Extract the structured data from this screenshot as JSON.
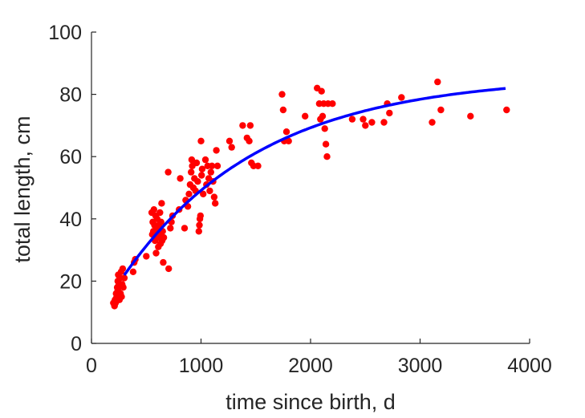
{
  "chart_data": {
    "type": "scatter",
    "title": "",
    "xlabel": "time since birth, d",
    "ylabel": "total length, cm",
    "xlim": [
      0,
      4000
    ],
    "ylim": [
      0,
      100
    ],
    "xticks": [
      0,
      1000,
      2000,
      3000,
      4000
    ],
    "yticks": [
      0,
      20,
      40,
      60,
      80,
      100
    ],
    "xtick_labels": [
      "0",
      "1000",
      "2000",
      "3000",
      "4000"
    ],
    "ytick_labels": [
      "0",
      "20",
      "40",
      "60",
      "80",
      "100"
    ],
    "grid": false,
    "series": [
      {
        "kind": "scatter",
        "color": "#ff0000",
        "points": [
          [
            200,
            13
          ],
          [
            210,
            12
          ],
          [
            215,
            14
          ],
          [
            220,
            13
          ],
          [
            225,
            16
          ],
          [
            230,
            15
          ],
          [
            235,
            18
          ],
          [
            240,
            17
          ],
          [
            240,
            20
          ],
          [
            245,
            22
          ],
          [
            250,
            19
          ],
          [
            255,
            14
          ],
          [
            260,
            21
          ],
          [
            265,
            16
          ],
          [
            270,
            23
          ],
          [
            275,
            15
          ],
          [
            280,
            19
          ],
          [
            285,
            24
          ],
          [
            290,
            18
          ],
          [
            300,
            21
          ],
          [
            380,
            23
          ],
          [
            390,
            26
          ],
          [
            400,
            27
          ],
          [
            500,
            28
          ],
          [
            550,
            42
          ],
          [
            555,
            35
          ],
          [
            560,
            39
          ],
          [
            565,
            36
          ],
          [
            570,
            43
          ],
          [
            575,
            38
          ],
          [
            580,
            33
          ],
          [
            585,
            41
          ],
          [
            590,
            29
          ],
          [
            595,
            36
          ],
          [
            600,
            37
          ],
          [
            600,
            40
          ],
          [
            605,
            34
          ],
          [
            610,
            31
          ],
          [
            615,
            38
          ],
          [
            620,
            35
          ],
          [
            625,
            42
          ],
          [
            630,
            32
          ],
          [
            635,
            39
          ],
          [
            640,
            45
          ],
          [
            645,
            33
          ],
          [
            650,
            36
          ],
          [
            655,
            26
          ],
          [
            660,
            34
          ],
          [
            700,
            55
          ],
          [
            705,
            24
          ],
          [
            720,
            37
          ],
          [
            730,
            39
          ],
          [
            740,
            41
          ],
          [
            800,
            43
          ],
          [
            810,
            53
          ],
          [
            850,
            37
          ],
          [
            860,
            46
          ],
          [
            880,
            44
          ],
          [
            890,
            48
          ],
          [
            900,
            51
          ],
          [
            910,
            55
          ],
          [
            915,
            59
          ],
          [
            920,
            57
          ],
          [
            930,
            50
          ],
          [
            940,
            53
          ],
          [
            950,
            49
          ],
          [
            960,
            58
          ],
          [
            970,
            52
          ],
          [
            980,
            36
          ],
          [
            985,
            38
          ],
          [
            990,
            40
          ],
          [
            995,
            41
          ],
          [
            1000,
            65
          ],
          [
            1005,
            54
          ],
          [
            1010,
            56
          ],
          [
            1020,
            48
          ],
          [
            1040,
            59
          ],
          [
            1050,
            51
          ],
          [
            1060,
            57
          ],
          [
            1070,
            53
          ],
          [
            1080,
            49
          ],
          [
            1090,
            55
          ],
          [
            1100,
            57
          ],
          [
            1110,
            52
          ],
          [
            1120,
            47
          ],
          [
            1130,
            45
          ],
          [
            1140,
            62
          ],
          [
            1150,
            57
          ],
          [
            1260,
            65
          ],
          [
            1280,
            63
          ],
          [
            1380,
            70
          ],
          [
            1420,
            66
          ],
          [
            1440,
            65
          ],
          [
            1450,
            70
          ],
          [
            1460,
            58
          ],
          [
            1480,
            57
          ],
          [
            1520,
            57
          ],
          [
            1740,
            80
          ],
          [
            1750,
            75
          ],
          [
            1760,
            65
          ],
          [
            1780,
            68
          ],
          [
            1800,
            65
          ],
          [
            1950,
            73
          ],
          [
            2060,
            82
          ],
          [
            2080,
            77
          ],
          [
            2090,
            72
          ],
          [
            2100,
            81
          ],
          [
            2110,
            73
          ],
          [
            2120,
            77
          ],
          [
            2130,
            69
          ],
          [
            2140,
            64
          ],
          [
            2150,
            60
          ],
          [
            2160,
            77
          ],
          [
            2200,
            77
          ],
          [
            2380,
            72
          ],
          [
            2480,
            72
          ],
          [
            2500,
            70
          ],
          [
            2560,
            71
          ],
          [
            2670,
            71
          ],
          [
            2700,
            77
          ],
          [
            2720,
            74
          ],
          [
            2830,
            79
          ],
          [
            3110,
            71
          ],
          [
            3160,
            84
          ],
          [
            3190,
            75
          ],
          [
            3460,
            73
          ],
          [
            3790,
            75
          ]
        ]
      },
      {
        "kind": "line",
        "color": "#0000ff",
        "fit": {
          "L_inf": 86,
          "L0": 4.8,
          "k": 0.00079
        },
        "x_range": [
          300,
          3780
        ]
      }
    ]
  }
}
